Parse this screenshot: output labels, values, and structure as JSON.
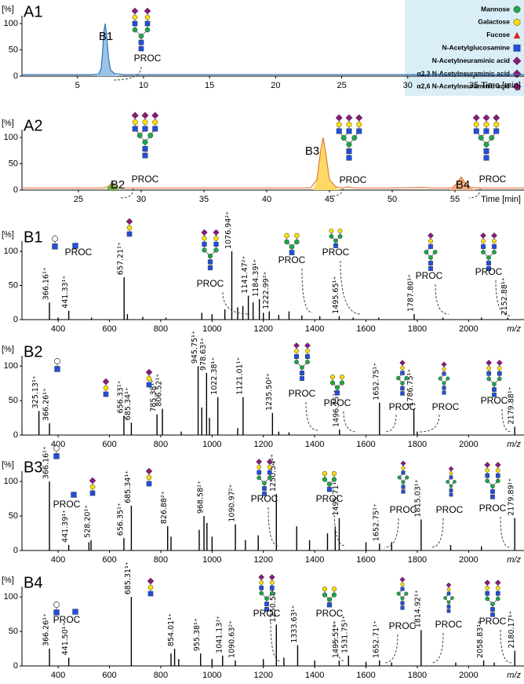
{
  "chart_data": [
    {
      "type": "line",
      "panel": "A1",
      "ylabel": "[%]",
      "xlabel": "Time [min]",
      "color": "#2e75b6",
      "x": [
        0.8,
        3,
        5,
        6,
        6.6,
        6.8,
        6.9,
        7.0,
        7.1,
        7.2,
        7.35,
        7.5,
        7.8,
        8.5,
        10,
        15,
        20,
        25,
        30,
        35,
        38.8
      ],
      "values": [
        3,
        3,
        3,
        3,
        4,
        15,
        45,
        85,
        100,
        80,
        35,
        12,
        5,
        3,
        3,
        3,
        3,
        3,
        3,
        3,
        3
      ],
      "fills": [
        {
          "from": 6.5,
          "to": 8.0,
          "color": "#9dc3e6"
        }
      ],
      "xlim": [
        0.8,
        38.8
      ],
      "xticks": [
        5,
        10,
        15,
        20,
        25,
        30,
        35
      ],
      "ylim": [
        0,
        115
      ],
      "yticks": [
        0,
        50,
        100
      ],
      "annotations": [
        "B1",
        "PROC"
      ],
      "legend": [
        {
          "name": "Mannose",
          "color": "#1aa84a",
          "shape": "circle"
        },
        {
          "name": "Galactose",
          "color": "#ffe000",
          "shape": "circle"
        },
        {
          "name": "Fucose",
          "color": "#e0201b",
          "shape": "triangle"
        },
        {
          "name": "N-Acetylglucosamine",
          "color": "#1f4fe0",
          "shape": "square"
        },
        {
          "name": "N-Acetylneuraminic acid",
          "color": "#8b1a7c",
          "shape": "diamond"
        },
        {
          "name": "α2,3 N-Acetylneuraminic acid",
          "color": "#8b1a7c",
          "shape": "diamond"
        },
        {
          "name": "α2,6 N-Acetylneuraminic acid",
          "color": "#8b1a7c",
          "shape": "diamond"
        }
      ],
      "legend_color": "#daeef8"
    },
    {
      "type": "line",
      "panel": "A2",
      "ylabel": "[%]",
      "xlabel": "Time [min]",
      "color": "#e07b39",
      "x": [
        20.5,
        22,
        25,
        27,
        27.4,
        27.6,
        27.7,
        27.8,
        28,
        28.4,
        30,
        35,
        40,
        43.5,
        44,
        44.3,
        44.5,
        44.7,
        45,
        45.5,
        46,
        46.5,
        47,
        50,
        52.5,
        53,
        54.8,
        55.2,
        55.5,
        55.8,
        56.2,
        57,
        60.5
      ],
      "values": [
        4,
        4,
        4,
        4,
        7,
        13,
        15,
        12,
        6,
        4,
        4,
        4,
        4,
        4,
        20,
        75,
        100,
        70,
        20,
        6,
        4,
        6,
        4,
        4,
        5,
        4,
        4,
        15,
        25,
        14,
        5,
        4,
        4
      ],
      "fills": [
        {
          "from": 27.2,
          "to": 28.3,
          "color": "#70ad47"
        },
        {
          "from": 43.7,
          "to": 45.8,
          "color": "#ffd966"
        },
        {
          "from": 54.6,
          "to": 56.6,
          "color": "#f4b183"
        }
      ],
      "xlim": [
        20.5,
        60.5
      ],
      "xticks": [
        25,
        30,
        35,
        40,
        45,
        50,
        55
      ],
      "ylim": [
        0,
        115
      ],
      "yticks": [
        0,
        50,
        100
      ],
      "annotations": [
        "B2",
        "PROC",
        "B3",
        "PROC",
        "B4",
        "PROC"
      ]
    },
    {
      "type": "stem",
      "panel": "B1",
      "ylabel": "[%]",
      "xlabel": "m/z",
      "color": "#000000",
      "x": [
        366.16,
        441.33,
        657.21,
        1076.94,
        1141.47,
        1184.39,
        1222.99,
        1495.65,
        1787.8,
        2152.88,
        400,
        530,
        670,
        730,
        820,
        960,
        1000,
        1050,
        1100,
        1120,
        1160,
        1200,
        1260,
        1300,
        1350,
        1420,
        1550,
        1650,
        1900,
        2050
      ],
      "values": [
        25,
        13,
        62,
        100,
        35,
        30,
        12,
        5,
        8,
        3,
        3,
        3,
        8,
        4,
        3,
        10,
        8,
        15,
        18,
        20,
        25,
        10,
        7,
        12,
        6,
        5,
        3,
        3,
        3,
        3
      ],
      "peak_labels": [
        "366.16¹⁺",
        "441.33¹⁺",
        "657.21¹⁺",
        "1076.94²⁺",
        "1141.47²⁺",
        "1184.39¹⁺",
        "1222.99²⁺",
        "1495.65¹⁺",
        "1787.80¹⁺",
        "2152.88¹⁺",
        null,
        null,
        null,
        null,
        null,
        null,
        null,
        null,
        null,
        null,
        null,
        null,
        null,
        null,
        null,
        null,
        null,
        null,
        null,
        null
      ],
      "xlim": [
        259,
        2216
      ],
      "xticks": [
        400,
        600,
        800,
        1000,
        1200,
        1400,
        1600,
        1800,
        2000
      ],
      "ylim": [
        0,
        115
      ],
      "yticks": [
        0,
        50,
        100
      ],
      "annotations": [
        "PROC",
        "PROC",
        "PROC",
        "PROC",
        "PROC",
        "PROC"
      ]
    },
    {
      "type": "stem",
      "panel": "B2",
      "ylabel": "[%]",
      "xlabel": "m/z",
      "color": "#000000",
      "x": [
        325.13,
        366.26,
        656.33,
        685.34,
        785.38,
        806.52,
        945.75,
        978.63,
        1022.38,
        1121.01,
        1235.5,
        1496.75,
        1652.75,
        1786.75,
        2179.88,
        880,
        960,
        990,
        1100,
        1260,
        1300,
        1800
      ],
      "values": [
        35,
        17,
        28,
        18,
        30,
        38,
        100,
        90,
        55,
        55,
        32,
        8,
        47,
        38,
        12,
        5,
        40,
        25,
        10,
        5,
        4,
        5
      ],
      "peak_labels": [
        "325.13¹⁺",
        "366.26¹⁺",
        "656.33¹⁺",
        "685.34¹⁺",
        "785.38¹⁺",
        "806.52¹⁺",
        "945.75¹⁺",
        "978.63¹⁺",
        "1022.38¹⁺",
        "1121.01¹⁺",
        "1235.50²⁺",
        "1496.75¹⁺",
        "1652.75¹⁺",
        "1786.75¹⁺",
        "2179.88¹⁺",
        null,
        null,
        null,
        null,
        null,
        null,
        null
      ],
      "xlim": [
        259,
        2216
      ],
      "xticks": [
        400,
        600,
        800,
        1000,
        1200,
        1400,
        1600,
        1800,
        2000
      ],
      "ylim": [
        0,
        115
      ],
      "yticks": [
        0,
        50,
        100
      ],
      "annotations": [
        "PROC",
        "PROC",
        "PROC",
        "PROC",
        "PROC"
      ]
    },
    {
      "type": "stem",
      "panel": "B3",
      "ylabel": "[%]",
      "xlabel": "m/z",
      "color": "#000000",
      "x": [
        366.16,
        441.39,
        528.2,
        656.35,
        685.34,
        826.88,
        968.58,
        1090.97,
        1250.54,
        1495.71,
        1652.75,
        1815.03,
        2179.89,
        520,
        840,
        950,
        980,
        1000,
        1130,
        1180,
        1330,
        1380,
        1450,
        1480,
        1600,
        1700,
        1930,
        2050
      ],
      "values": [
        100,
        8,
        15,
        18,
        65,
        35,
        50,
        38,
        82,
        47,
        10,
        45,
        47,
        12,
        20,
        30,
        40,
        20,
        15,
        22,
        35,
        15,
        25,
        35,
        12,
        12,
        8,
        6
      ],
      "peak_labels": [
        "366.16¹⁺",
        "441.39¹⁺",
        "528.20¹⁺",
        "656.35¹⁺",
        "685.34¹⁺",
        "826.88²⁺",
        "968.58²⁺",
        "1090.97²⁺",
        "1250.54²⁺",
        "1495.71¹⁺",
        "1652.75¹⁺",
        "1815.03¹⁺",
        "2179.89¹⁺",
        null,
        null,
        null,
        null,
        null,
        null,
        null,
        null,
        null,
        null,
        null,
        null,
        null,
        null,
        null
      ],
      "xlim": [
        259,
        2216
      ],
      "xticks": [
        400,
        600,
        800,
        1000,
        1200,
        1400,
        1600,
        1800,
        2000
      ],
      "ylim": [
        0,
        115
      ],
      "yticks": [
        0,
        50,
        100
      ],
      "annotations": [
        "PROC",
        "PROC",
        "PROC",
        "PROC",
        "PROC",
        "PROC"
      ]
    },
    {
      "type": "stem",
      "panel": "B4",
      "ylabel": "[%]",
      "xlabel": "m/z",
      "color": "#000000",
      "x": [
        366.26,
        441.5,
        685.31,
        854.01,
        955.38,
        1041.13,
        1090.63,
        1250.58,
        1333.63,
        1495.51,
        1531.75,
        1652.71,
        1814.92,
        2058.83,
        2180.17,
        840,
        870,
        1000,
        1200,
        1280,
        1400,
        1600,
        1700,
        1950,
        2100
      ],
      "values": [
        25,
        12,
        100,
        25,
        18,
        15,
        8,
        60,
        30,
        8,
        15,
        8,
        52,
        8,
        22,
        18,
        10,
        10,
        10,
        12,
        8,
        6,
        5,
        5,
        5
      ],
      "peak_labels": [
        "366.26¹⁺",
        "441.50¹⁺",
        "685.31¹⁺",
        "854.01¹⁺",
        "955.38¹⁺",
        "1041.13²⁺",
        "1090.63²⁺",
        "1250.58²⁺",
        "1333.63¹⁺",
        "1495.51¹⁺",
        "1531.75¹⁺",
        "1652.71¹⁺",
        "1814.92¹⁺",
        "2058.83¹⁺",
        "2180.17¹⁺",
        null,
        null,
        null,
        null,
        null,
        null,
        null,
        null,
        null,
        null
      ],
      "xlim": [
        259,
        2216
      ],
      "xticks": [
        400,
        600,
        800,
        1000,
        1200,
        1400,
        1600,
        1800,
        2000
      ],
      "ylim": [
        0,
        115
      ],
      "yticks": [
        0,
        50,
        100
      ],
      "annotations": [
        "PROC",
        "PROC",
        "PROC",
        "PROC",
        "PROC",
        "PROC"
      ]
    }
  ]
}
